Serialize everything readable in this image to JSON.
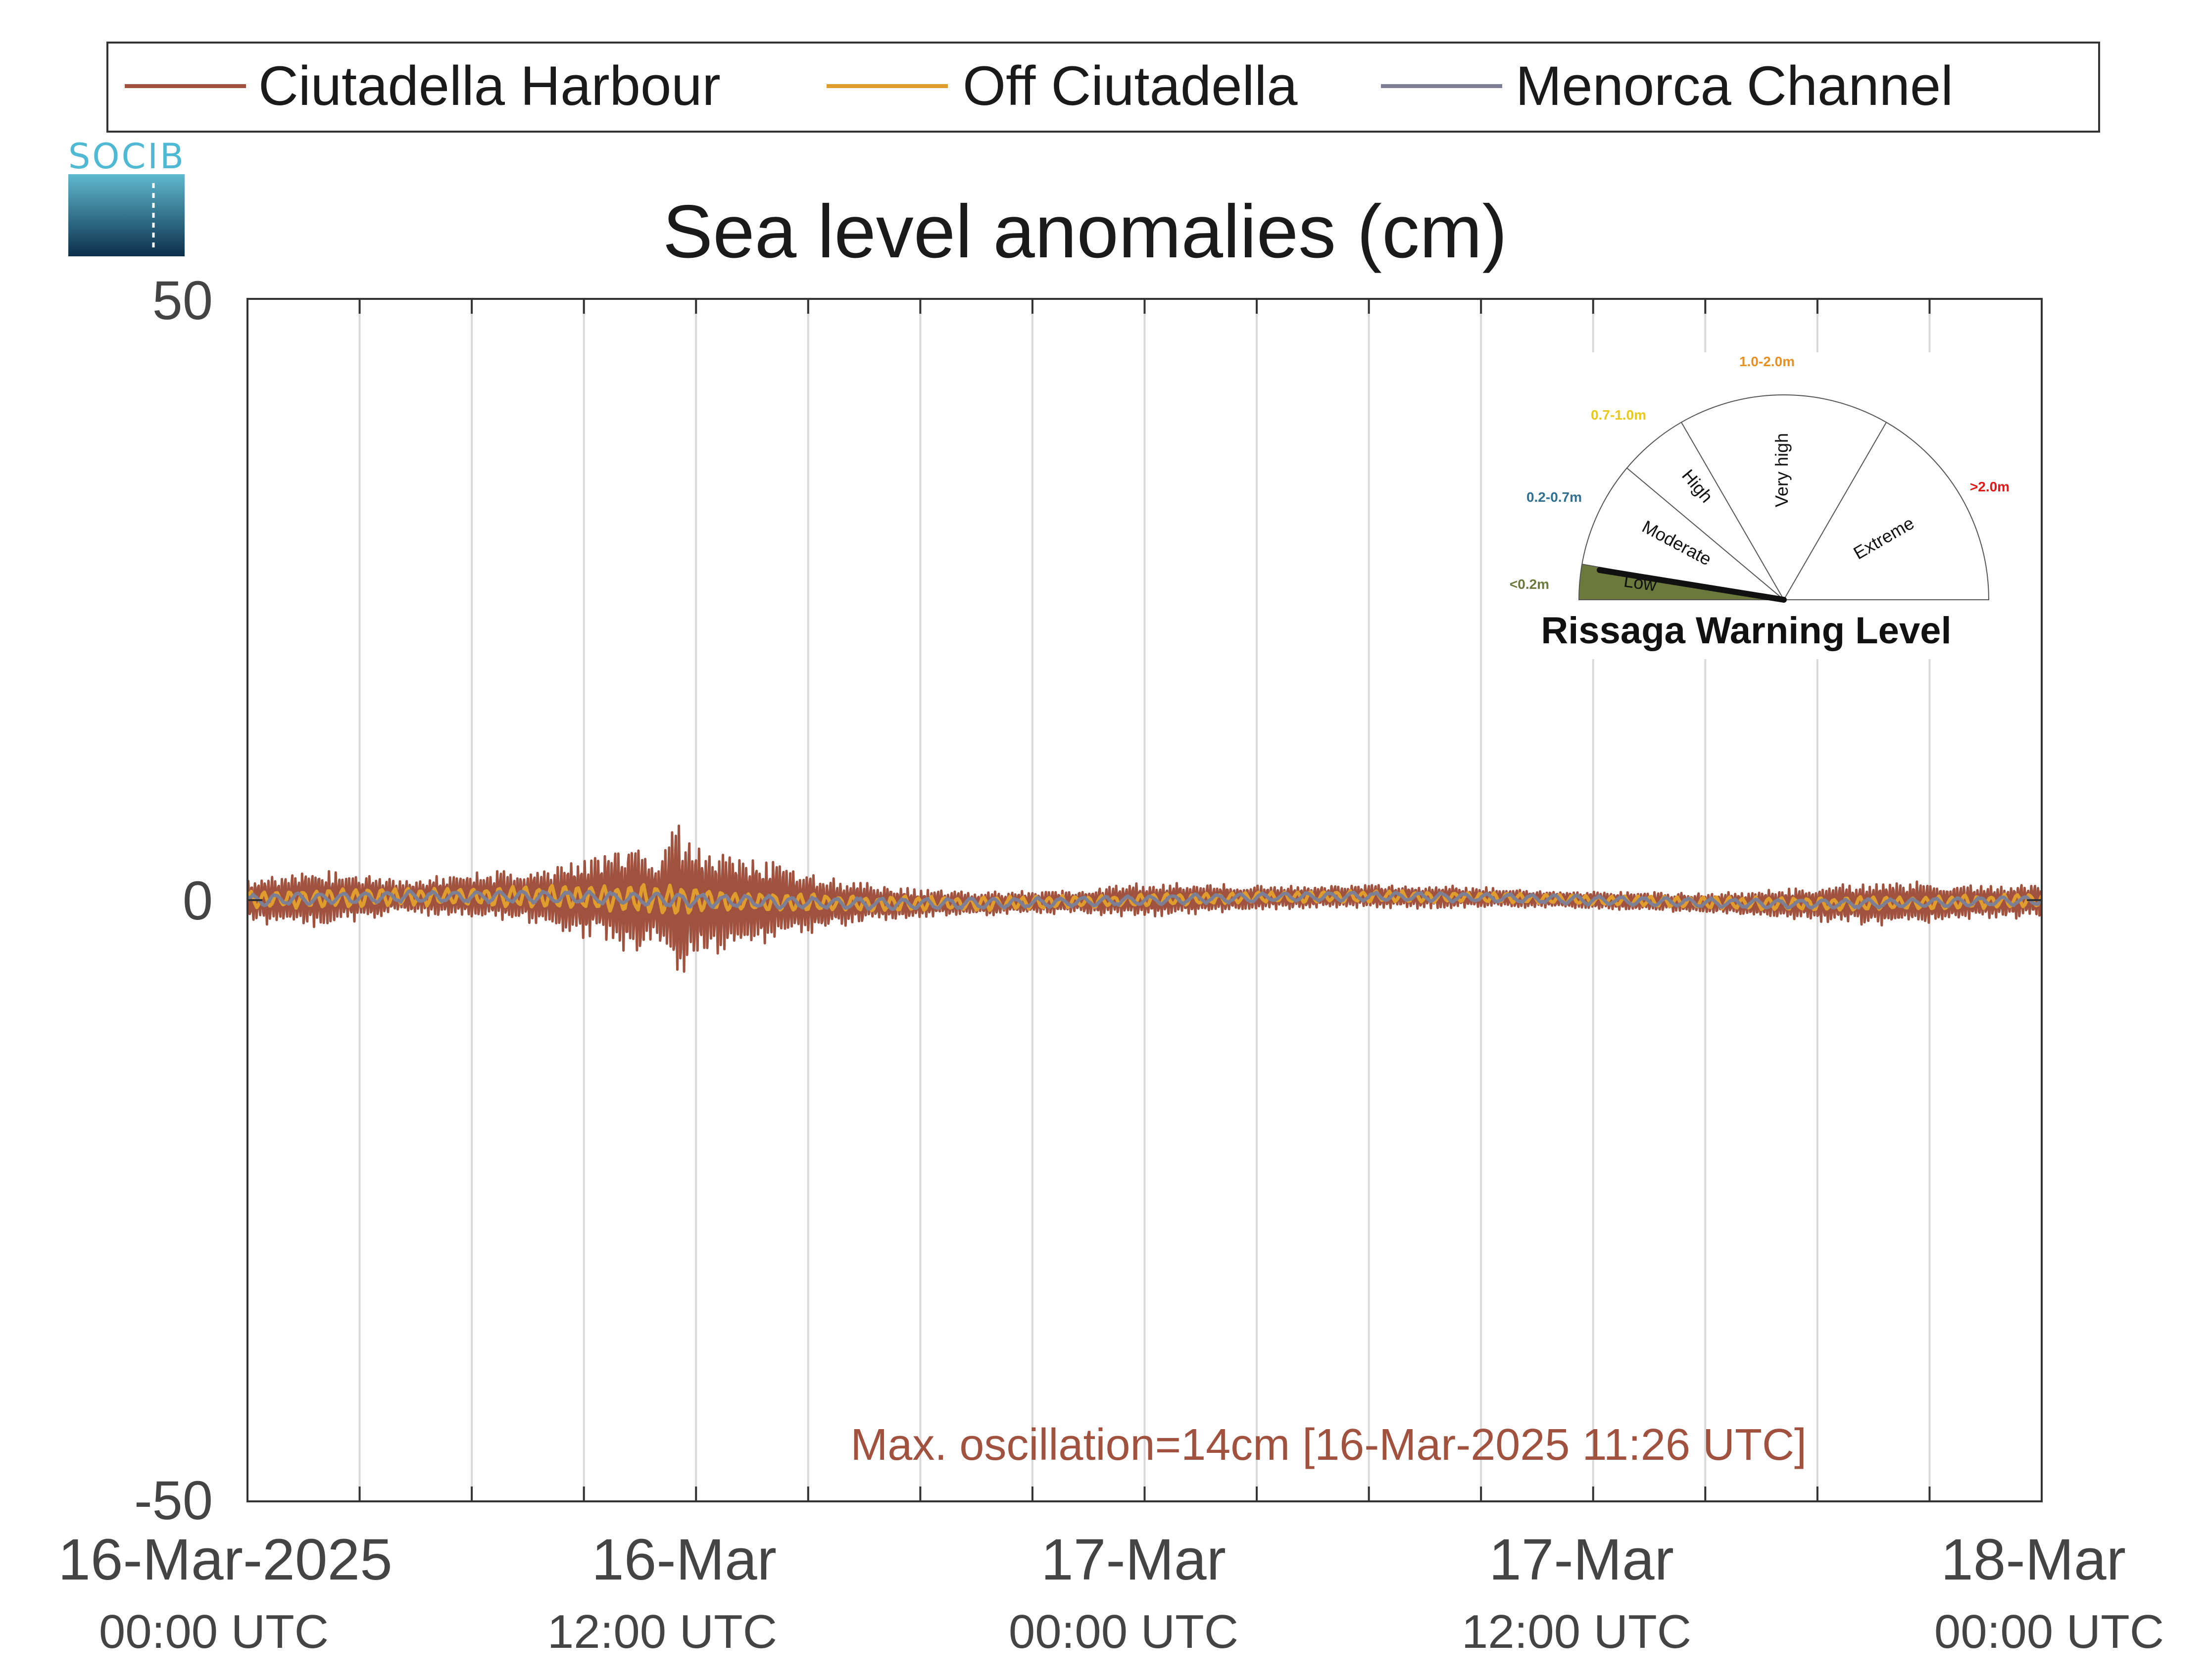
{
  "chart_data": {
    "type": "line",
    "title": "Sea level anomalies (cm)",
    "xlabel": "",
    "ylabel": "",
    "ylim": [
      -50,
      50
    ],
    "yticks": [
      "50",
      "0",
      "-50"
    ],
    "xlim": [
      "2025-03-16T00:00Z",
      "2025-03-18T00:00Z"
    ],
    "xticks": [
      {
        "date": "16-Mar-2025",
        "time": "00:00 UTC"
      },
      {
        "date": "16-Mar",
        "time": "12:00 UTC"
      },
      {
        "date": "17-Mar",
        "time": "00:00 UTC"
      },
      {
        "date": "17-Mar",
        "time": "12:00 UTC"
      },
      {
        "date": "18-Mar",
        "time": "00:00 UTC"
      }
    ],
    "grid": "vertical lines every 3 hours",
    "legend_position": "top",
    "series": [
      {
        "name": "Ciutadella Harbour",
        "color": "#a0523f",
        "x_hours": [
          0,
          2,
          4,
          6,
          8,
          10,
          10.5,
          11,
          11.43,
          12,
          14,
          16,
          18,
          20,
          22,
          24,
          26,
          28,
          30,
          32,
          34,
          36,
          38,
          40,
          42,
          44,
          46,
          48
        ],
        "amplitude_cm": [
          2,
          2.5,
          1.5,
          2,
          2.5,
          4.5,
          5,
          4,
          7,
          5,
          3.5,
          2,
          1.2,
          1,
          1,
          1.5,
          1.2,
          1,
          1,
          1,
          0.8,
          0.8,
          0.8,
          1,
          1.5,
          2,
          1.5,
          1.5
        ]
      },
      {
        "name": "Off Ciutadella",
        "color": "#e09c2c",
        "x_hours": [
          0,
          6,
          8,
          10,
          11.43,
          12,
          16,
          24,
          30,
          36,
          42,
          48
        ],
        "amplitude_cm": [
          0.8,
          0.8,
          1,
          1.2,
          1.3,
          1,
          0.7,
          0.5,
          0.5,
          0.4,
          0.6,
          0.6
        ]
      },
      {
        "name": "Menorca Channel",
        "color": "#7d7f95",
        "x_hours": [
          0,
          6,
          12,
          24,
          36,
          48
        ],
        "amplitude_cm": [
          0.5,
          0.5,
          0.6,
          0.4,
          0.4,
          0.4
        ]
      }
    ],
    "annotation": "Max. oscillation=14cm [16-Mar-2025 11:26 UTC]"
  },
  "logo": {
    "text": "SOCIB"
  },
  "gauge": {
    "title": "Rissaga Warning Level",
    "current_level": "Low",
    "sectors": [
      {
        "label": "Low",
        "range": "<0.2m",
        "color": "#6b7a3c"
      },
      {
        "label": "Moderate",
        "range": "0.2-0.7m",
        "color": "#2f6f8f"
      },
      {
        "label": "High",
        "range": "0.7-1.0m",
        "color": "#e8c81a"
      },
      {
        "label": "Very high",
        "range": "1.0-2.0m",
        "color": "#e89020"
      },
      {
        "label": "Extreme",
        "range": ">2.0m",
        "color": "#e01818"
      }
    ]
  }
}
